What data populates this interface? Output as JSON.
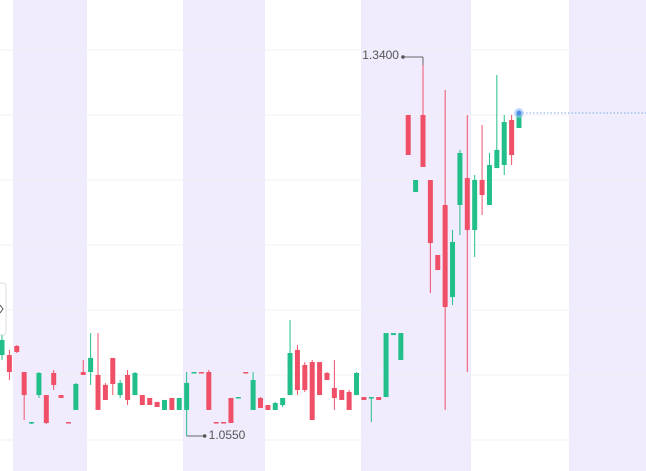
{
  "chart_data": {
    "type": "candlestick",
    "up_color": "#22bf8a",
    "down_color": "#ef5068",
    "open": [
      1.1159,
      1.1159,
      1.1227,
      1.1031,
      1.0648,
      1.0858,
      1.0858,
      1.1024,
      1.0858,
      1.0655,
      1.0746,
      1.1031,
      1.1031,
      1.1009,
      1.0934,
      1.1137,
      1.0858,
      1.1009,
      1.0858,
      1.0858,
      1.0836,
      1.0806,
      1.0746,
      1.0836,
      1.0746,
      1.0746,
      1.1024,
      1.1031,
      1.1031,
      1.0655,
      1.0655,
      1.0836,
      1.0836,
      1.1031,
      1.0746,
      1.0836,
      1.0783,
      1.0746,
      1.0783,
      1.0858,
      1.1197,
      1.1084,
      1.1106,
      1.1106,
      1.1024,
      1.0911,
      1.0896,
      1.0881,
      1.0858,
      1.0843,
      1.0836,
      1.0843,
      1.0843,
      1.1309,
      1.1122,
      1.2964,
      1.2385,
      1.2964,
      1.2475,
      1.1911,
      1.2287,
      1.1595,
      1.2287,
      1.249,
      1.2099,
      1.2475,
      1.2287,
      1.2565,
      1.2588,
      1.2926,
      1.2866
    ],
    "high": [
      1.1309,
      1.1197,
      1.1234,
      1.1031,
      1.0655,
      1.1031,
      1.0858,
      1.1046,
      1.0858,
      1.0655,
      1.0949,
      1.1122,
      1.1324,
      1.1324,
      1.0949,
      1.1137,
      1.0971,
      1.1046,
      1.1031,
      1.0858,
      1.0836,
      1.0806,
      1.0821,
      1.0836,
      1.0836,
      1.1031,
      1.1031,
      1.1031,
      1.1046,
      1.0655,
      1.0655,
      1.0836,
      1.0843,
      1.1031,
      1.1031,
      1.0843,
      1.0783,
      1.0806,
      1.0836,
      1.1422,
      1.1234,
      1.1106,
      1.1122,
      1.1106,
      1.1031,
      1.1122,
      1.0896,
      1.0896,
      1.1031,
      1.0843,
      1.0843,
      1.0843,
      1.1324,
      1.1324,
      1.1324,
      1.2964,
      1.2475,
      1.34,
      1.2475,
      1.1911,
      1.3152,
      1.2099,
      1.2701,
      1.2964,
      1.2513,
      1.2889,
      1.2678,
      1.3265,
      1.2964,
      1.2964,
      1.2979
    ],
    "low": [
      1.1122,
      1.0971,
      1.1174,
      1.067,
      1.064,
      1.0836,
      1.064,
      1.0896,
      1.0836,
      1.0648,
      1.0746,
      1.1009,
      1.0934,
      1.0746,
      1.0821,
      1.0858,
      1.0836,
      1.0783,
      1.0858,
      1.0783,
      1.0783,
      1.0768,
      1.0746,
      1.0746,
      1.0746,
      1.055,
      1.1024,
      1.1024,
      1.0746,
      1.0648,
      1.0648,
      1.0648,
      1.0836,
      1.1024,
      1.0746,
      1.0761,
      1.0746,
      1.0746,
      1.0768,
      1.0858,
      1.0858,
      1.0881,
      1.067,
      1.0858,
      1.0971,
      1.0746,
      1.0821,
      1.0746,
      1.0858,
      1.0821,
      1.0655,
      1.0821,
      1.0843,
      1.1309,
      1.1122,
      1.2663,
      1.2385,
      1.2573,
      1.1625,
      1.1798,
      1.0746,
      1.1535,
      1.2061,
      1.1031,
      1.1896,
      1.2212,
      1.2287,
      1.2565,
      1.2513,
      1.2588,
      1.2866
    ],
    "close": [
      1.1272,
      1.1031,
      1.1182,
      1.0858,
      1.0655,
      1.1024,
      1.0648,
      1.0934,
      1.0836,
      1.0648,
      1.0941,
      1.1009,
      1.1137,
      1.0746,
      1.0821,
      1.0941,
      1.0949,
      1.0821,
      1.1024,
      1.0783,
      1.0783,
      1.0768,
      1.0821,
      1.0746,
      1.0836,
      1.0949,
      1.1031,
      1.1024,
      1.0746,
      1.0648,
      1.0648,
      1.0648,
      1.0843,
      1.1024,
      1.0971,
      1.0761,
      1.0746,
      1.0798,
      1.0836,
      1.1174,
      1.0896,
      1.0896,
      1.067,
      1.0858,
      1.0971,
      1.0836,
      1.0821,
      1.0746,
      1.1024,
      1.0821,
      1.0843,
      1.0821,
      1.1324,
      1.1324,
      1.1324,
      1.2663,
      1.2475,
      1.2573,
      1.2001,
      1.1798,
      1.152,
      1.2009,
      1.2678,
      1.2099,
      1.2475,
      1.2362,
      1.2588,
      1.2701,
      1.2911,
      1.2663,
      1.2979
    ],
    "high_label": {
      "value": 1.34,
      "label": "1.3400"
    },
    "low_label": {
      "value": 1.055,
      "label": "1.0550"
    }
  }
}
